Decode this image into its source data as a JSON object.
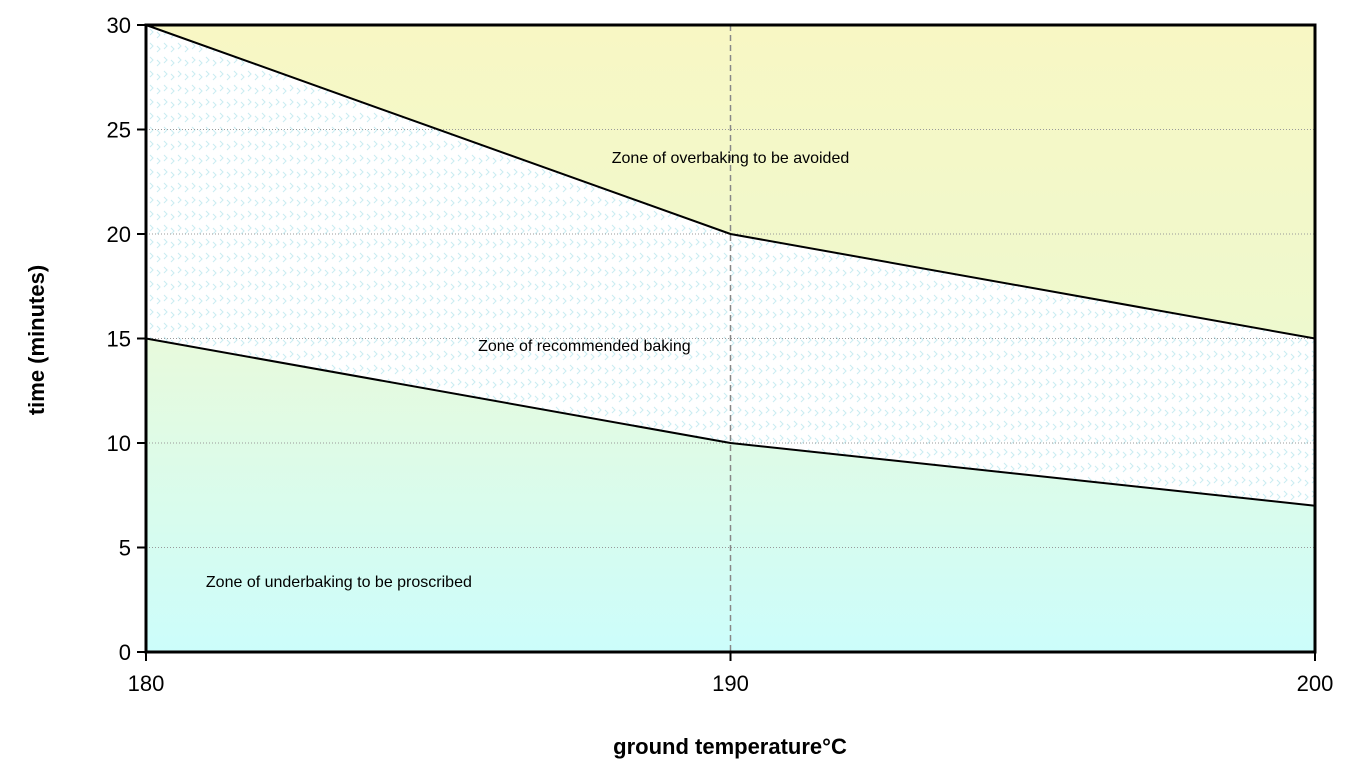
{
  "chart_data": {
    "type": "area",
    "xlabel": "ground temperature°C",
    "ylabel": "time (minutes)",
    "xlim": [
      180,
      200
    ],
    "ylim": [
      0,
      30
    ],
    "x_ticks": [
      180,
      190,
      200
    ],
    "y_ticks": [
      0,
      5,
      10,
      15,
      20,
      25,
      30
    ],
    "grid": "horizontal dotted gridlines; vertical dashed line at 190",
    "series": [
      {
        "x": [
          180,
          190,
          200
        ],
        "y": [
          30,
          20,
          15
        ]
      },
      {
        "x": [
          180,
          190,
          200
        ],
        "y": [
          15,
          10,
          7
        ]
      }
    ],
    "zones": [
      {
        "label": "Zone of overbaking to be avoided",
        "position": "above upper boundary",
        "at": [
          190,
          23.4
        ]
      },
      {
        "label": "Zone of recommended baking",
        "position": "between boundaries",
        "at": [
          187.5,
          14.4
        ]
      },
      {
        "label": "Zone of underbaking to be proscribed",
        "position": "below lower boundary",
        "at": [
          183.3,
          3.1
        ]
      }
    ],
    "colors": {
      "upper_zone_top": "#f8f7c4",
      "upper_zone_bottom": "#e4fbd8",
      "middle_zone": "#ffffff",
      "middle_pattern": "#c9ecf2",
      "lower_zone_top": "#e8fadc",
      "lower_zone_bottom": "#ccfdfb",
      "boundary_line": "#000000",
      "gridline": "#999999",
      "vertical_reference": "#888888"
    }
  }
}
